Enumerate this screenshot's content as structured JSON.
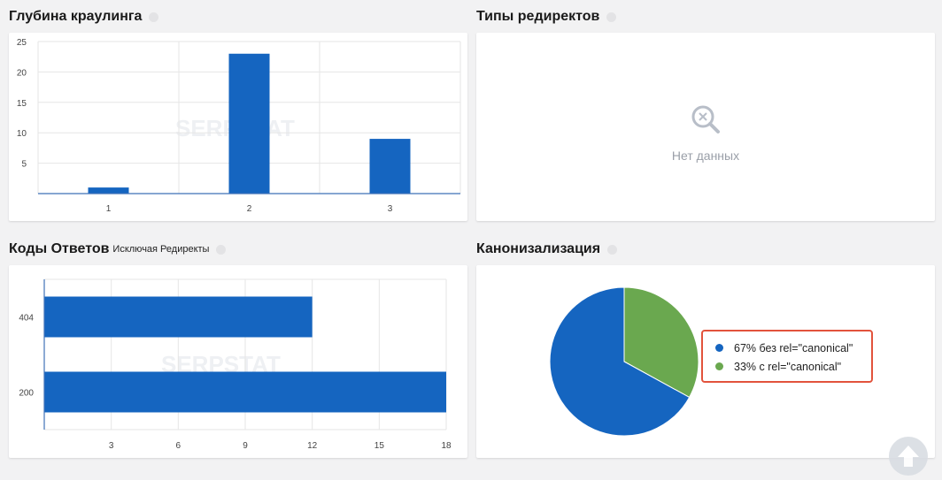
{
  "crawl_depth": {
    "title": "Глубина краулинга",
    "chart_data": {
      "type": "bar",
      "categories": [
        "1",
        "2",
        "3"
      ],
      "values": [
        1,
        23,
        9
      ],
      "ylim": [
        0,
        25
      ],
      "yticks": [
        5,
        10,
        15,
        20,
        25
      ],
      "grid": true,
      "color": "#1565c0"
    }
  },
  "redirect_types": {
    "title": "Типы редиректов",
    "empty_text": "Нет данных",
    "icon": "search-icon"
  },
  "response_codes": {
    "title": "Коды Ответов",
    "subtitle": "Исключая Редиректы",
    "chart_data": {
      "type": "bar",
      "orientation": "horizontal",
      "categories": [
        "404",
        "200"
      ],
      "values": [
        12,
        18
      ],
      "xlim": [
        0,
        18
      ],
      "xticks": [
        3,
        6,
        9,
        12,
        15,
        18
      ],
      "grid": true,
      "color": "#1565c0"
    }
  },
  "canonicalization": {
    "title": "Канонизализация",
    "chart_data": {
      "type": "pie",
      "slices": [
        {
          "label": "67% без rel=\"canonical\"",
          "value": 67,
          "color": "#1565c0"
        },
        {
          "label": "33% с rel=\"canonical\"",
          "value": 33,
          "color": "#6aa84f"
        }
      ]
    }
  },
  "watermark": "SERPSTAT",
  "scroll_top_icon": "arrow-up-icon"
}
